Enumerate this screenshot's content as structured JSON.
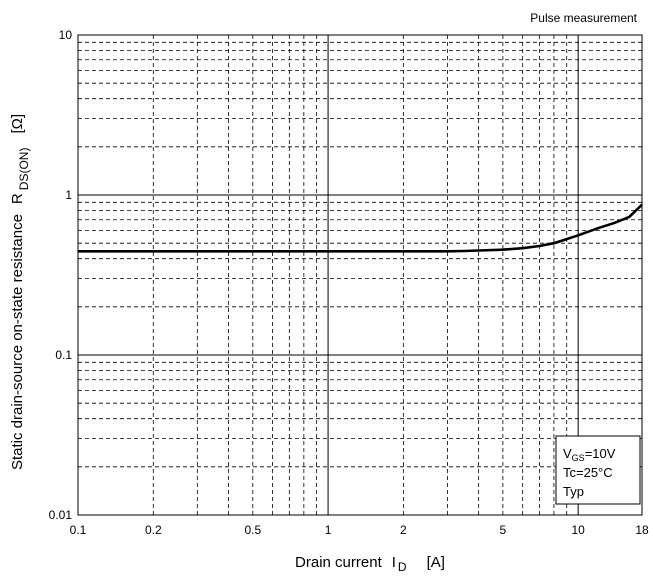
{
  "chart_data": {
    "type": "line",
    "scale": {
      "x": "log",
      "y": "log"
    },
    "xlim": [
      0.1,
      18
    ],
    "ylim": [
      0.01,
      10
    ],
    "x_ticks": [
      {
        "v": 0.1,
        "label": "0.1"
      },
      {
        "v": 0.2,
        "label": "0.2"
      },
      {
        "v": 0.5,
        "label": "0.5"
      },
      {
        "v": 1,
        "label": "1"
      },
      {
        "v": 2,
        "label": "2"
      },
      {
        "v": 5,
        "label": "5"
      },
      {
        "v": 10,
        "label": "10"
      },
      {
        "v": 18,
        "label": "18"
      }
    ],
    "y_ticks": [
      {
        "v": 0.01,
        "label": "0.01"
      },
      {
        "v": 0.1,
        "label": "0.1"
      },
      {
        "v": 1,
        "label": "1"
      },
      {
        "v": 10,
        "label": "10"
      }
    ],
    "x_minor_grid": [
      0.3,
      0.4,
      0.6,
      0.7,
      0.8,
      0.9,
      3,
      4,
      6,
      7,
      8,
      9
    ],
    "y_minor_grid": [
      0.02,
      0.03,
      0.04,
      0.05,
      0.06,
      0.07,
      0.08,
      0.09,
      0.2,
      0.3,
      0.4,
      0.5,
      0.6,
      0.7,
      0.8,
      0.9,
      2,
      3,
      4,
      5,
      6,
      7,
      8,
      9
    ],
    "x_major_grid": [
      1,
      10
    ],
    "y_major_grid": [
      0.1,
      1
    ],
    "grid": true,
    "xlabel": {
      "main": "Drain current",
      "symbol": "I",
      "subscript": "D",
      "unit": "[A]"
    },
    "ylabel": {
      "main": "Static drain-source on-state resistance",
      "symbol": "R",
      "subscript": "DS(ON)",
      "unit": "[Ω]"
    },
    "annotation_top_right": "Pulse measurement",
    "conditions_box": {
      "line1_main": "V",
      "line1_sub": "GS",
      "line1_rest": "=10V",
      "line2": "Tc=25°C",
      "line3": "Typ"
    },
    "series": [
      {
        "x": [
          0.1,
          0.5,
          1,
          2,
          3,
          3.5,
          4,
          5,
          6,
          7,
          8,
          9,
          10,
          12,
          14,
          16,
          18
        ],
        "y": [
          0.445,
          0.445,
          0.445,
          0.445,
          0.445,
          0.447,
          0.45,
          0.455,
          0.465,
          0.48,
          0.5,
          0.53,
          0.56,
          0.62,
          0.67,
          0.73,
          0.87
        ]
      }
    ],
    "colors": {
      "line": "#000000",
      "grid": "#000000"
    }
  }
}
